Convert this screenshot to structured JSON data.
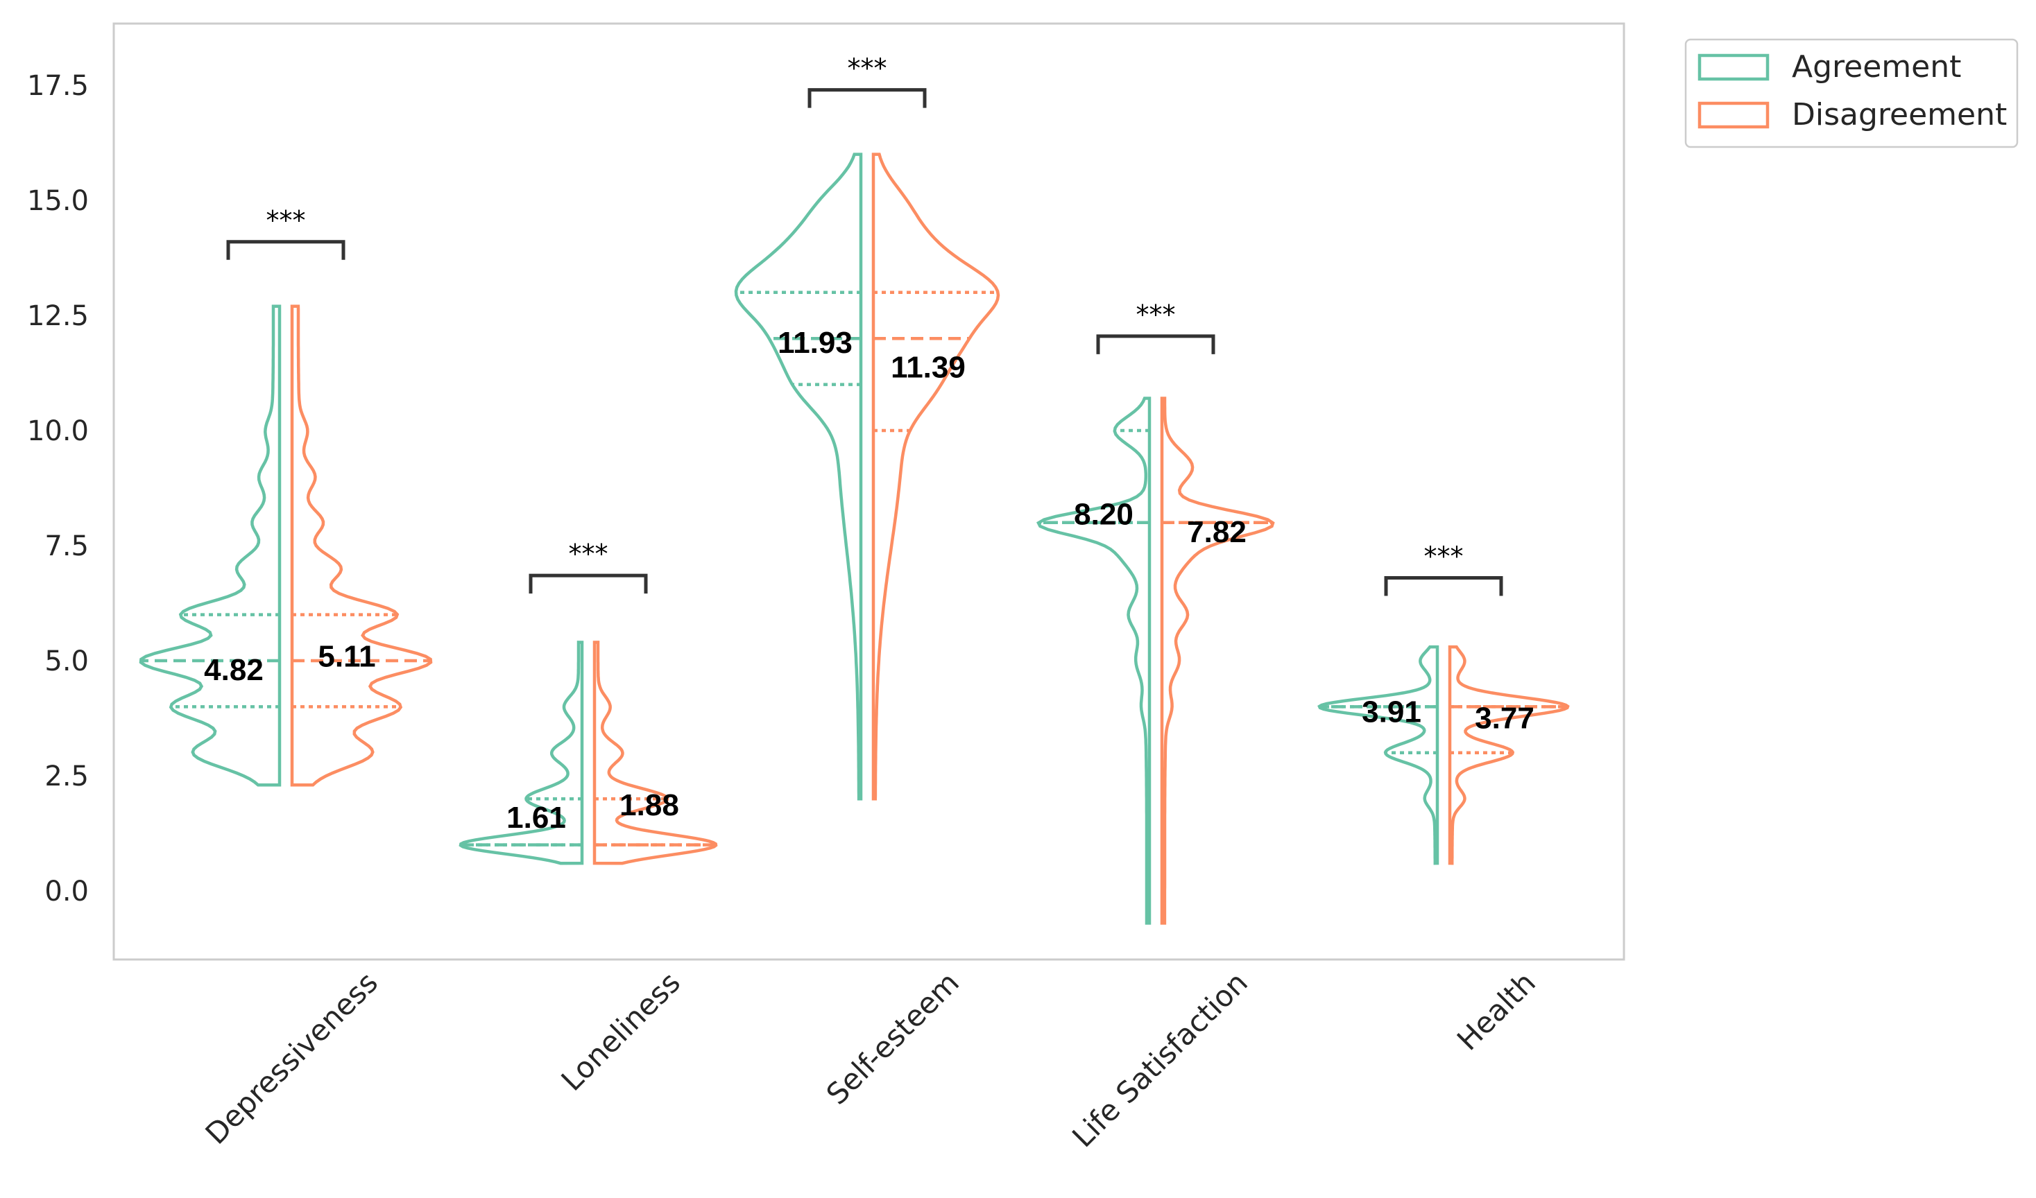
{
  "chart_data": {
    "type": "violin",
    "title": "",
    "xlabel": "",
    "ylabel": "",
    "ylim": [
      -1.4,
      18.8
    ],
    "yticks": [
      0.0,
      2.5,
      5.0,
      7.5,
      10.0,
      12.5,
      15.0,
      17.5
    ],
    "ytick_labels": [
      "0.0",
      "2.5",
      "5.0",
      "7.5",
      "10.0",
      "12.5",
      "15.0",
      "17.5"
    ],
    "categories": [
      "Depressiveness",
      "Loneliness",
      "Self-esteem",
      "Life Satisfaction",
      "Health"
    ],
    "grid": false,
    "legend_position": "outside-top-right",
    "colors": {
      "Agreement": "#66c2a5",
      "Disagreement": "#fc8d62"
    },
    "series": [
      {
        "name": "Agreement",
        "medians": [
          4.82,
          1.61,
          11.93,
          8.2,
          3.91
        ],
        "median_labels": [
          "4.82",
          "1.61",
          "11.93",
          "8.20",
          "3.91"
        ],
        "range": [
          [
            2.3,
            12.7
          ],
          [
            0.6,
            5.4
          ],
          [
            2.0,
            16.0
          ],
          [
            -0.7,
            10.7
          ],
          [
            0.6,
            5.3
          ]
        ],
        "quartiles": [
          [
            4,
            5,
            6
          ],
          [
            1,
            1,
            2
          ],
          [
            11,
            12,
            13
          ],
          [
            8,
            8,
            10
          ],
          [
            3,
            4,
            4
          ]
        ]
      },
      {
        "name": "Disagreement",
        "medians": [
          5.11,
          1.88,
          11.39,
          7.82,
          3.77
        ],
        "median_labels": [
          "5.11",
          "1.88",
          "11.39",
          "7.82",
          "3.77"
        ],
        "range": [
          [
            2.3,
            12.7
          ],
          [
            0.6,
            5.4
          ],
          [
            2.0,
            16.0
          ],
          [
            -0.7,
            10.7
          ],
          [
            0.6,
            5.3
          ]
        ],
        "quartiles": [
          [
            4,
            5,
            6
          ],
          [
            1,
            1,
            2
          ],
          [
            10,
            12,
            13
          ],
          [
            8,
            8,
            8
          ],
          [
            3,
            4,
            4
          ]
        ]
      }
    ],
    "significance": [
      {
        "category": "Depressiveness",
        "label": "***",
        "y": 14.1
      },
      {
        "category": "Loneliness",
        "label": "***",
        "y": 6.85
      },
      {
        "category": "Self-esteem",
        "label": "***",
        "y": 17.4
      },
      {
        "category": "Life Satisfaction",
        "label": "***",
        "y": 12.05
      },
      {
        "category": "Health",
        "label": "***",
        "y": 6.8
      }
    ]
  }
}
